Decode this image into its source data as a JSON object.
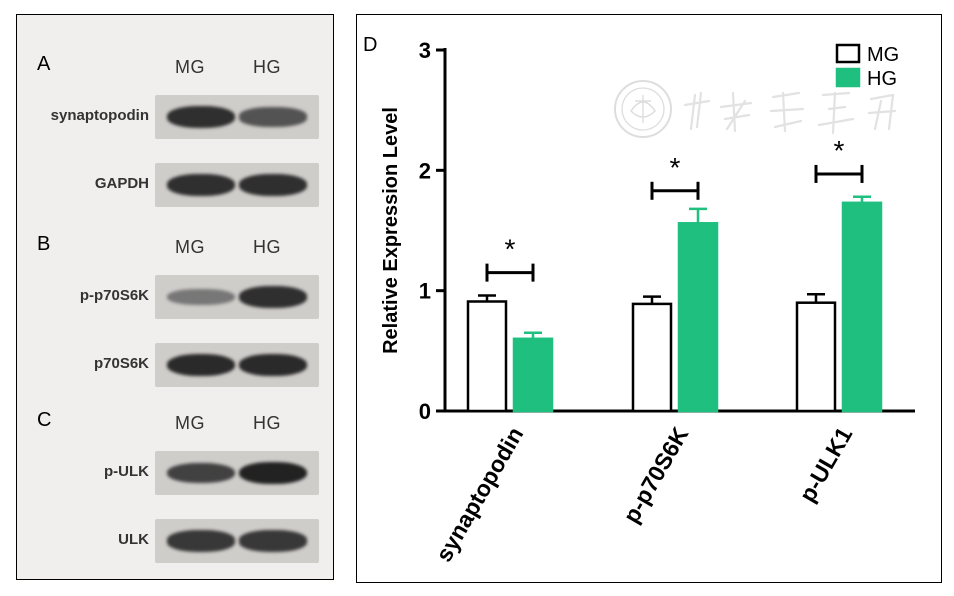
{
  "blots": {
    "lane_labels": [
      "MG",
      "HG"
    ],
    "panels": [
      {
        "letter": "A",
        "rows": [
          {
            "label": "synaptopodin",
            "intensity": [
              0.85,
              0.65
            ]
          },
          {
            "label": "GAPDH",
            "intensity": [
              0.85,
              0.85
            ]
          }
        ]
      },
      {
        "letter": "B",
        "rows": [
          {
            "label": "p-p70S6K",
            "intensity": [
              0.45,
              0.85
            ]
          },
          {
            "label": "p70S6K",
            "intensity": [
              0.88,
              0.88
            ]
          }
        ]
      },
      {
        "letter": "C",
        "rows": [
          {
            "label": "p-ULK",
            "intensity": [
              0.75,
              0.92
            ]
          },
          {
            "label": "ULK",
            "intensity": [
              0.8,
              0.8
            ]
          }
        ]
      }
    ]
  },
  "chart_panel_letter": "D",
  "watermark_text": "中华医学会",
  "chart_data": {
    "type": "bar",
    "categories": [
      "synaptopodin",
      "p-p70S6K",
      "p-ULK1"
    ],
    "series": [
      {
        "name": "MG",
        "values": [
          0.91,
          0.89,
          0.9
        ],
        "errors": [
          0.05,
          0.06,
          0.07
        ],
        "color": "#ffffff",
        "stroke": "#000000"
      },
      {
        "name": "HG",
        "values": [
          0.6,
          1.56,
          1.73
        ],
        "errors": [
          0.05,
          0.12,
          0.05
        ],
        "color": "#1fbf7f",
        "stroke": "#1fbf7f"
      }
    ],
    "ylabel": "Relative Expression Level",
    "ylim": [
      0,
      3
    ],
    "yticks": [
      "0",
      "1",
      "2",
      "3"
    ],
    "significance": [
      {
        "category": 0,
        "label": "*",
        "level": 1.15
      },
      {
        "category": 1,
        "label": "*",
        "level": 1.83
      },
      {
        "category": 2,
        "label": "*",
        "level": 1.97
      }
    ],
    "legend_position": "top-right",
    "grid": false
  }
}
